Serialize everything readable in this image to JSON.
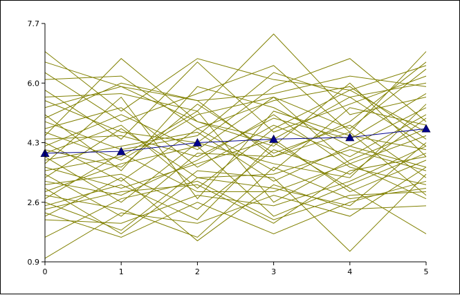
{
  "chart_data": {
    "type": "line",
    "x": [
      0,
      1,
      2,
      3,
      4,
      5
    ],
    "xticks": [
      "0",
      "1",
      "2",
      "3",
      "4",
      "5"
    ],
    "yticks": [
      "0.9",
      "2.6",
      "4.3",
      "6.0",
      "7.7"
    ],
    "ylim": [
      0.9,
      7.7
    ],
    "xlim": [
      0,
      5
    ],
    "grid": false,
    "colors": {
      "background_lines": "#808000",
      "mean_line": "#00008b",
      "axis": "#000000"
    },
    "background_series": [
      [
        6.9,
        5.2,
        6.7,
        6.1,
        5.8,
        6.5
      ],
      [
        6.6,
        5.9,
        5.5,
        5.7,
        6.2,
        5.9
      ],
      [
        6.3,
        4.9,
        5.7,
        6.5,
        4.6,
        6.9
      ],
      [
        6.1,
        6.2,
        4.7,
        5.5,
        5.9,
        4.4
      ],
      [
        5.8,
        4.4,
        6.6,
        4.6,
        5.4,
        6.2
      ],
      [
        5.6,
        5.7,
        5.2,
        7.4,
        5.1,
        5.6
      ],
      [
        5.5,
        4.6,
        4.3,
        5.9,
        6.7,
        4.9
      ],
      [
        5.3,
        5.9,
        4.9,
        4.4,
        5.6,
        6.0
      ],
      [
        5.1,
        3.5,
        5.9,
        5.3,
        4.2,
        5.3
      ],
      [
        5.0,
        6.0,
        5.5,
        3.9,
        4.9,
        6.6
      ],
      [
        4.9,
        4.1,
        4.5,
        6.3,
        5.6,
        4.2
      ],
      [
        4.7,
        5.3,
        3.6,
        4.8,
        3.9,
        5.1
      ],
      [
        4.6,
        3.8,
        5.1,
        5.6,
        4.7,
        6.4
      ],
      [
        4.5,
        6.7,
        4.9,
        4.2,
        6.0,
        3.9
      ],
      [
        4.4,
        4.5,
        3.9,
        5.0,
        4.4,
        5.7
      ],
      [
        4.3,
        3.2,
        4.7,
        3.5,
        5.3,
        4.8
      ],
      [
        4.2,
        5.1,
        4.1,
        5.6,
        3.7,
        4.5
      ],
      [
        4.1,
        3.6,
        5.4,
        4.0,
        4.8,
        3.3
      ],
      [
        4.0,
        4.8,
        3.0,
        4.7,
        5.8,
        4.6
      ],
      [
        3.9,
        2.6,
        4.3,
        3.7,
        3.3,
        5.4
      ],
      [
        3.8,
        4.2,
        4.6,
        3.2,
        4.2,
        3.6
      ],
      [
        3.7,
        5.6,
        2.7,
        5.2,
        4.5,
        4.1
      ],
      [
        3.6,
        3.0,
        3.7,
        4.4,
        2.9,
        3.8
      ],
      [
        3.5,
        3.9,
        5.2,
        2.6,
        3.8,
        4.7
      ],
      [
        3.4,
        2.2,
        4.0,
        3.9,
        4.6,
        2.8
      ],
      [
        3.3,
        4.7,
        3.3,
        3.0,
        2.5,
        4.3
      ],
      [
        3.2,
        2.8,
        3.8,
        5.1,
        3.6,
        3.1
      ],
      [
        3.1,
        3.4,
        2.4,
        4.1,
        3.4,
        5.0
      ],
      [
        3.0,
        1.7,
        3.3,
        3.4,
        4.1,
        3.5
      ],
      [
        2.9,
        3.7,
        4.2,
        2.2,
        3.1,
        4.0
      ],
      [
        2.8,
        2.4,
        1.6,
        3.6,
        2.7,
        3.0
      ],
      [
        2.7,
        4.0,
        2.9,
        2.9,
        3.7,
        2.7
      ],
      [
        2.6,
        1.8,
        3.5,
        3.3,
        1.2,
        3.4
      ],
      [
        2.5,
        3.1,
        2.1,
        4.3,
        3.0,
        1.7
      ],
      [
        2.4,
        2.9,
        3.1,
        2.0,
        3.5,
        3.9
      ],
      [
        2.3,
        1.6,
        2.6,
        1.7,
        2.6,
        3.2
      ],
      [
        2.2,
        3.3,
        1.5,
        3.1,
        2.4,
        2.5
      ],
      [
        2.1,
        2.0,
        2.8,
        2.5,
        3.2,
        4.2
      ],
      [
        1.6,
        2.7,
        3.2,
        2.1,
        2.8,
        2.9
      ],
      [
        1.0,
        2.3,
        2.0,
        2.8,
        2.2,
        3.6
      ]
    ],
    "mean_series": [
      4.0,
      4.05,
      4.3,
      4.4,
      4.45,
      4.7
    ]
  }
}
